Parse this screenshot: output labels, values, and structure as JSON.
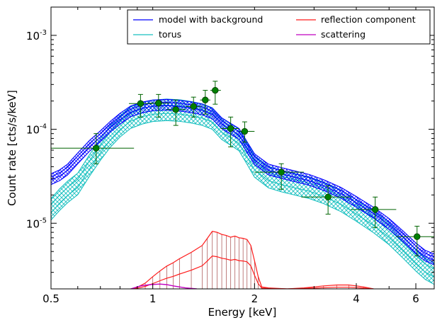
{
  "chart_data": {
    "type": "line",
    "title": "",
    "xlabel": "Energy [keV]",
    "ylabel": "Count rate [cts/s/keV]",
    "x_scale": "log",
    "y_scale": "log",
    "xlim": [
      0.5,
      6.8
    ],
    "ylim": [
      2e-06,
      0.002
    ],
    "grid": false,
    "legend_position": "top-right",
    "x_ticks": [
      {
        "value": 0.5,
        "label": "0.5"
      },
      {
        "value": 1,
        "label": "1"
      },
      {
        "value": 2,
        "label": "2"
      },
      {
        "value": 4,
        "label": "4"
      },
      {
        "value": 6,
        "label": "6"
      }
    ],
    "y_ticks": [
      {
        "value": 1e-05,
        "base": "10",
        "exp": "-5"
      },
      {
        "value": 0.0001,
        "base": "10",
        "exp": "-4"
      },
      {
        "value": 0.001,
        "base": "10",
        "exp": "-3"
      }
    ],
    "series": [
      {
        "name": "model with background",
        "color": "#0000ff",
        "x": [
          0.5,
          0.53,
          0.56,
          0.6,
          0.65,
          0.7,
          0.75,
          0.8,
          0.86,
          0.93,
          1.0,
          1.1,
          1.2,
          1.3,
          1.4,
          1.5,
          1.6,
          1.7,
          1.8,
          1.9,
          2.0,
          2.2,
          2.4,
          2.6,
          2.9,
          3.2,
          3.6,
          4.0,
          4.5,
          5.0,
          5.5,
          6.0,
          6.4,
          6.8
        ],
        "y": [
          3e-05,
          3.3e-05,
          3.8e-05,
          5e-05,
          6.8e-05,
          8.6e-05,
          0.000109,
          0.000132,
          0.000158,
          0.000174,
          0.000183,
          0.000186,
          0.000182,
          0.000175,
          0.000166,
          0.00015,
          0.000118,
          0.000103,
          9.1e-05,
          6.6e-05,
          4.9e-05,
          3.8e-05,
          3.5e-05,
          3.25e-05,
          2.95e-05,
          2.6e-05,
          2.15e-05,
          1.72e-05,
          1.32e-05,
          1e-05,
          7.4e-06,
          5.5e-06,
          4.6e-06,
          4.2e-06
        ]
      },
      {
        "name": "torus",
        "color": "#19c0c0",
        "x": [
          0.5,
          0.53,
          0.56,
          0.6,
          0.65,
          0.7,
          0.75,
          0.8,
          0.86,
          0.93,
          1.0,
          1.1,
          1.2,
          1.3,
          1.4,
          1.5,
          1.6,
          1.7,
          1.8,
          1.9,
          2.0,
          2.2,
          2.4,
          2.6,
          2.9,
          3.2,
          3.6,
          4.0,
          4.5,
          5.0,
          5.5,
          6.0,
          6.4,
          6.8
        ],
        "y": [
          1.5e-05,
          1.9e-05,
          2.3e-05,
          2.8e-05,
          4.4e-05,
          6.5e-05,
          9e-05,
          0.000115,
          0.000142,
          0.000158,
          0.000168,
          0.000172,
          0.000169,
          0.000162,
          0.000153,
          0.000139,
          0.000108,
          9.4e-05,
          8.2e-05,
          5.9e-05,
          4.3e-05,
          3.3e-05,
          3e-05,
          2.8e-05,
          2.55e-05,
          2.25e-05,
          1.85e-05,
          1.46e-05,
          1.1e-05,
          8.2e-06,
          5.9e-06,
          4.3e-06,
          3.5e-06,
          3.1e-06
        ]
      },
      {
        "name": "reflection component",
        "color": "#ff1a1a",
        "x": [
          0.88,
          0.95,
          1.0,
          1.05,
          1.1,
          1.15,
          1.2,
          1.3,
          1.4,
          1.45,
          1.5,
          1.55,
          1.6,
          1.65,
          1.7,
          1.75,
          1.8,
          1.85,
          1.9,
          1.95,
          2.0,
          2.05,
          2.1,
          2.2,
          2.5,
          2.8,
          3.0,
          3.2,
          3.5,
          3.8,
          4.0,
          4.2,
          4.5
        ],
        "y": [
          2e-06,
          2.3e-06,
          2.7e-06,
          3.1e-06,
          3.5e-06,
          3.8e-06,
          4.2e-06,
          4.9e-06,
          5.8e-06,
          6.9e-06,
          8.2e-06,
          8e-06,
          7.6e-06,
          7.4e-06,
          7.1e-06,
          7.3e-06,
          7e-06,
          6.9e-06,
          6.7e-06,
          5.8e-06,
          4e-06,
          2.7e-06,
          2.1e-06,
          2.05e-06,
          2e-06,
          2.05e-06,
          2.1e-06,
          2.15e-06,
          2.2e-06,
          2.2e-06,
          2.15e-06,
          2.1e-06,
          2e-06
        ]
      },
      {
        "name": "scattering",
        "color": "#c000c0",
        "x": [
          0.86,
          0.92,
          0.98,
          1.05,
          1.1,
          1.15,
          1.25,
          1.35
        ],
        "y": [
          2e-06,
          2.15e-06,
          2.22e-06,
          2.25e-06,
          2.22e-06,
          2.15e-06,
          2.05e-06,
          2e-06
        ]
      }
    ],
    "data_points": {
      "color": "#006400",
      "points": [
        {
          "x": 0.68,
          "y": 6.3e-05,
          "xlo": 0.5,
          "xhi": 0.88,
          "ylo": 4.3e-05,
          "yhi": 9e-05
        },
        {
          "x": 0.92,
          "y": 0.000188,
          "xlo": 0.85,
          "xhi": 1.0,
          "ylo": 0.000135,
          "yhi": 0.000235
        },
        {
          "x": 1.04,
          "y": 0.00019,
          "xlo": 0.98,
          "xhi": 1.12,
          "ylo": 0.000135,
          "yhi": 0.000235
        },
        {
          "x": 1.17,
          "y": 0.000162,
          "xlo": 1.1,
          "xhi": 1.25,
          "ylo": 0.00011,
          "yhi": 0.000205
        },
        {
          "x": 1.32,
          "y": 0.000175,
          "xlo": 1.25,
          "xhi": 1.39,
          "ylo": 0.000135,
          "yhi": 0.00022
        },
        {
          "x": 1.43,
          "y": 0.000205,
          "xlo": 1.38,
          "xhi": 1.48,
          "ylo": 0.000145,
          "yhi": 0.00026
        },
        {
          "x": 1.53,
          "y": 0.00026,
          "xlo": 1.48,
          "xhi": 1.59,
          "ylo": 0.000185,
          "yhi": 0.000325
        },
        {
          "x": 1.7,
          "y": 0.000102,
          "xlo": 1.59,
          "xhi": 1.8,
          "ylo": 6.5e-05,
          "yhi": 0.000135
        },
        {
          "x": 1.87,
          "y": 9.5e-05,
          "xlo": 1.8,
          "xhi": 2.0,
          "ylo": 7.3e-05,
          "yhi": 0.00012
        },
        {
          "x": 2.4,
          "y": 3.5e-05,
          "xlo": 2.0,
          "xhi": 2.8,
          "ylo": 2.3e-05,
          "yhi": 4.3e-05
        },
        {
          "x": 3.3,
          "y": 1.9e-05,
          "xlo": 2.75,
          "xhi": 3.85,
          "ylo": 1.25e-05,
          "yhi": 2.5e-05
        },
        {
          "x": 4.55,
          "y": 1.4e-05,
          "xlo": 3.85,
          "xhi": 5.25,
          "ylo": 9e-06,
          "yhi": 1.9e-05
        },
        {
          "x": 6.05,
          "y": 7.2e-06,
          "xlo": 5.25,
          "xhi": 6.8,
          "ylo": 4.5e-06,
          "yhi": 9.3e-06
        }
      ]
    }
  }
}
